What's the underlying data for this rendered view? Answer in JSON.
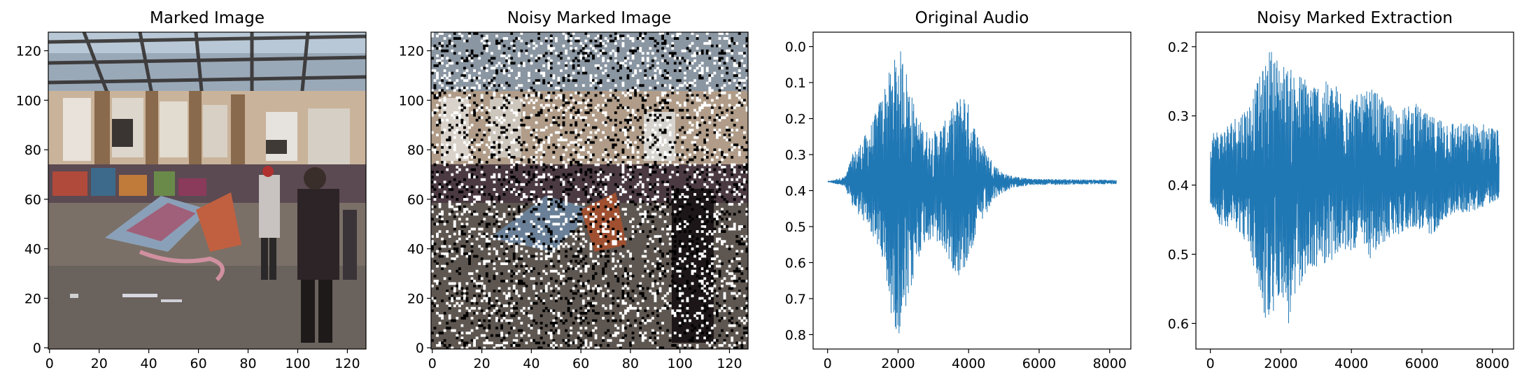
{
  "chart_data": [
    {
      "type": "image",
      "title": "Marked Image",
      "description": "",
      "xlim": [
        -0.5,
        127.5
      ],
      "ylim": [
        127.5,
        -0.5
      ],
      "xticks": [
        0,
        20,
        40,
        60,
        80,
        100,
        120
      ],
      "yticks": [
        0,
        20,
        40,
        60,
        80,
        100,
        120
      ],
      "tick_labels_x": [
        "0",
        "20",
        "40",
        "60",
        "80",
        "100",
        "120"
      ],
      "tick_labels_y": [
        "0",
        "20",
        "40",
        "60",
        "80",
        "100",
        "120"
      ]
    },
    {
      "type": "image",
      "title": "Noisy Marked Image",
      "xlim": [
        -0.5,
        127.5
      ],
      "ylim": [
        127.5,
        -0.5
      ],
      "xticks": [
        0,
        20,
        40,
        60,
        80,
        100,
        120
      ],
      "yticks": [
        0,
        20,
        40,
        60,
        80,
        100,
        120
      ],
      "tick_labels_x": [
        "0",
        "20",
        "40",
        "60",
        "80",
        "100",
        "120"
      ],
      "tick_labels_y": [
        "0",
        "20",
        "40",
        "60",
        "80",
        "100",
        "120"
      ]
    },
    {
      "type": "line",
      "title": "Original Audio",
      "color": "#1f77b4",
      "n_samples": 8192,
      "xlim": [
        -410,
        8600
      ],
      "ylim": [
        -0.04,
        0.84
      ],
      "xticks": [
        0,
        2000,
        4000,
        6000,
        8000
      ],
      "yticks": [
        0.0,
        0.1,
        0.2,
        0.3,
        0.4,
        0.5,
        0.6,
        0.7,
        0.8
      ],
      "tick_labels_x": [
        "0",
        "2000",
        "4000",
        "6000",
        "8000"
      ],
      "tick_labels_y": [
        "0.0",
        "0.1",
        "0.2",
        "0.3",
        "0.4",
        "0.5",
        "0.6",
        "0.7",
        "0.8"
      ],
      "baseline": 0.375,
      "envelope": {
        "x": [
          0,
          500,
          700,
          900,
          1100,
          1300,
          1500,
          1700,
          1850,
          2000,
          2150,
          2300,
          2500,
          2700,
          2900,
          3100,
          3300,
          3500,
          3700,
          3900,
          4100,
          4300,
          4500,
          4700,
          4900,
          5100,
          5400,
          5800,
          8192
        ],
        "upper": [
          0.375,
          0.39,
          0.45,
          0.47,
          0.5,
          0.53,
          0.58,
          0.7,
          0.77,
          0.8,
          0.79,
          0.72,
          0.62,
          0.55,
          0.54,
          0.55,
          0.57,
          0.61,
          0.64,
          0.62,
          0.56,
          0.5,
          0.47,
          0.43,
          0.41,
          0.4,
          0.39,
          0.385,
          0.382
        ],
        "lower": [
          0.375,
          0.36,
          0.3,
          0.27,
          0.24,
          0.2,
          0.14,
          0.08,
          0.05,
          0.0,
          0.02,
          0.09,
          0.18,
          0.22,
          0.24,
          0.23,
          0.21,
          0.18,
          0.14,
          0.12,
          0.2,
          0.25,
          0.29,
          0.32,
          0.345,
          0.355,
          0.362,
          0.367,
          0.37
        ]
      }
    },
    {
      "type": "line",
      "title": "Noisy Marked Extraction",
      "color": "#1f77b4",
      "n_samples": 8192,
      "xlim": [
        -410,
        8600
      ],
      "ylim": [
        0.179,
        0.637
      ],
      "xticks": [
        0,
        2000,
        4000,
        6000,
        8000
      ],
      "yticks": [
        0.2,
        0.3,
        0.4,
        0.5,
        0.6
      ],
      "tick_labels_x": [
        "0",
        "2000",
        "4000",
        "6000",
        "8000"
      ],
      "tick_labels_y": [
        "0.2",
        "0.3",
        "0.4",
        "0.5",
        "0.6"
      ],
      "baseline": 0.39,
      "envelope": {
        "x": [
          0,
          300,
          700,
          1100,
          1500,
          1700,
          2000,
          2200,
          2600,
          3000,
          3400,
          3800,
          4200,
          4600,
          5000,
          5400,
          5800,
          6200,
          6600,
          7000,
          7400,
          7800,
          8192
        ],
        "upper": [
          0.43,
          0.46,
          0.46,
          0.49,
          0.59,
          0.61,
          0.55,
          0.61,
          0.54,
          0.52,
          0.51,
          0.5,
          0.49,
          0.51,
          0.48,
          0.47,
          0.46,
          0.48,
          0.45,
          0.44,
          0.44,
          0.43,
          0.42
        ],
        "lower": [
          0.32,
          0.32,
          0.3,
          0.28,
          0.23,
          0.2,
          0.22,
          0.23,
          0.24,
          0.25,
          0.25,
          0.26,
          0.27,
          0.26,
          0.28,
          0.29,
          0.28,
          0.3,
          0.3,
          0.31,
          0.31,
          0.31,
          0.32
        ]
      }
    }
  ]
}
